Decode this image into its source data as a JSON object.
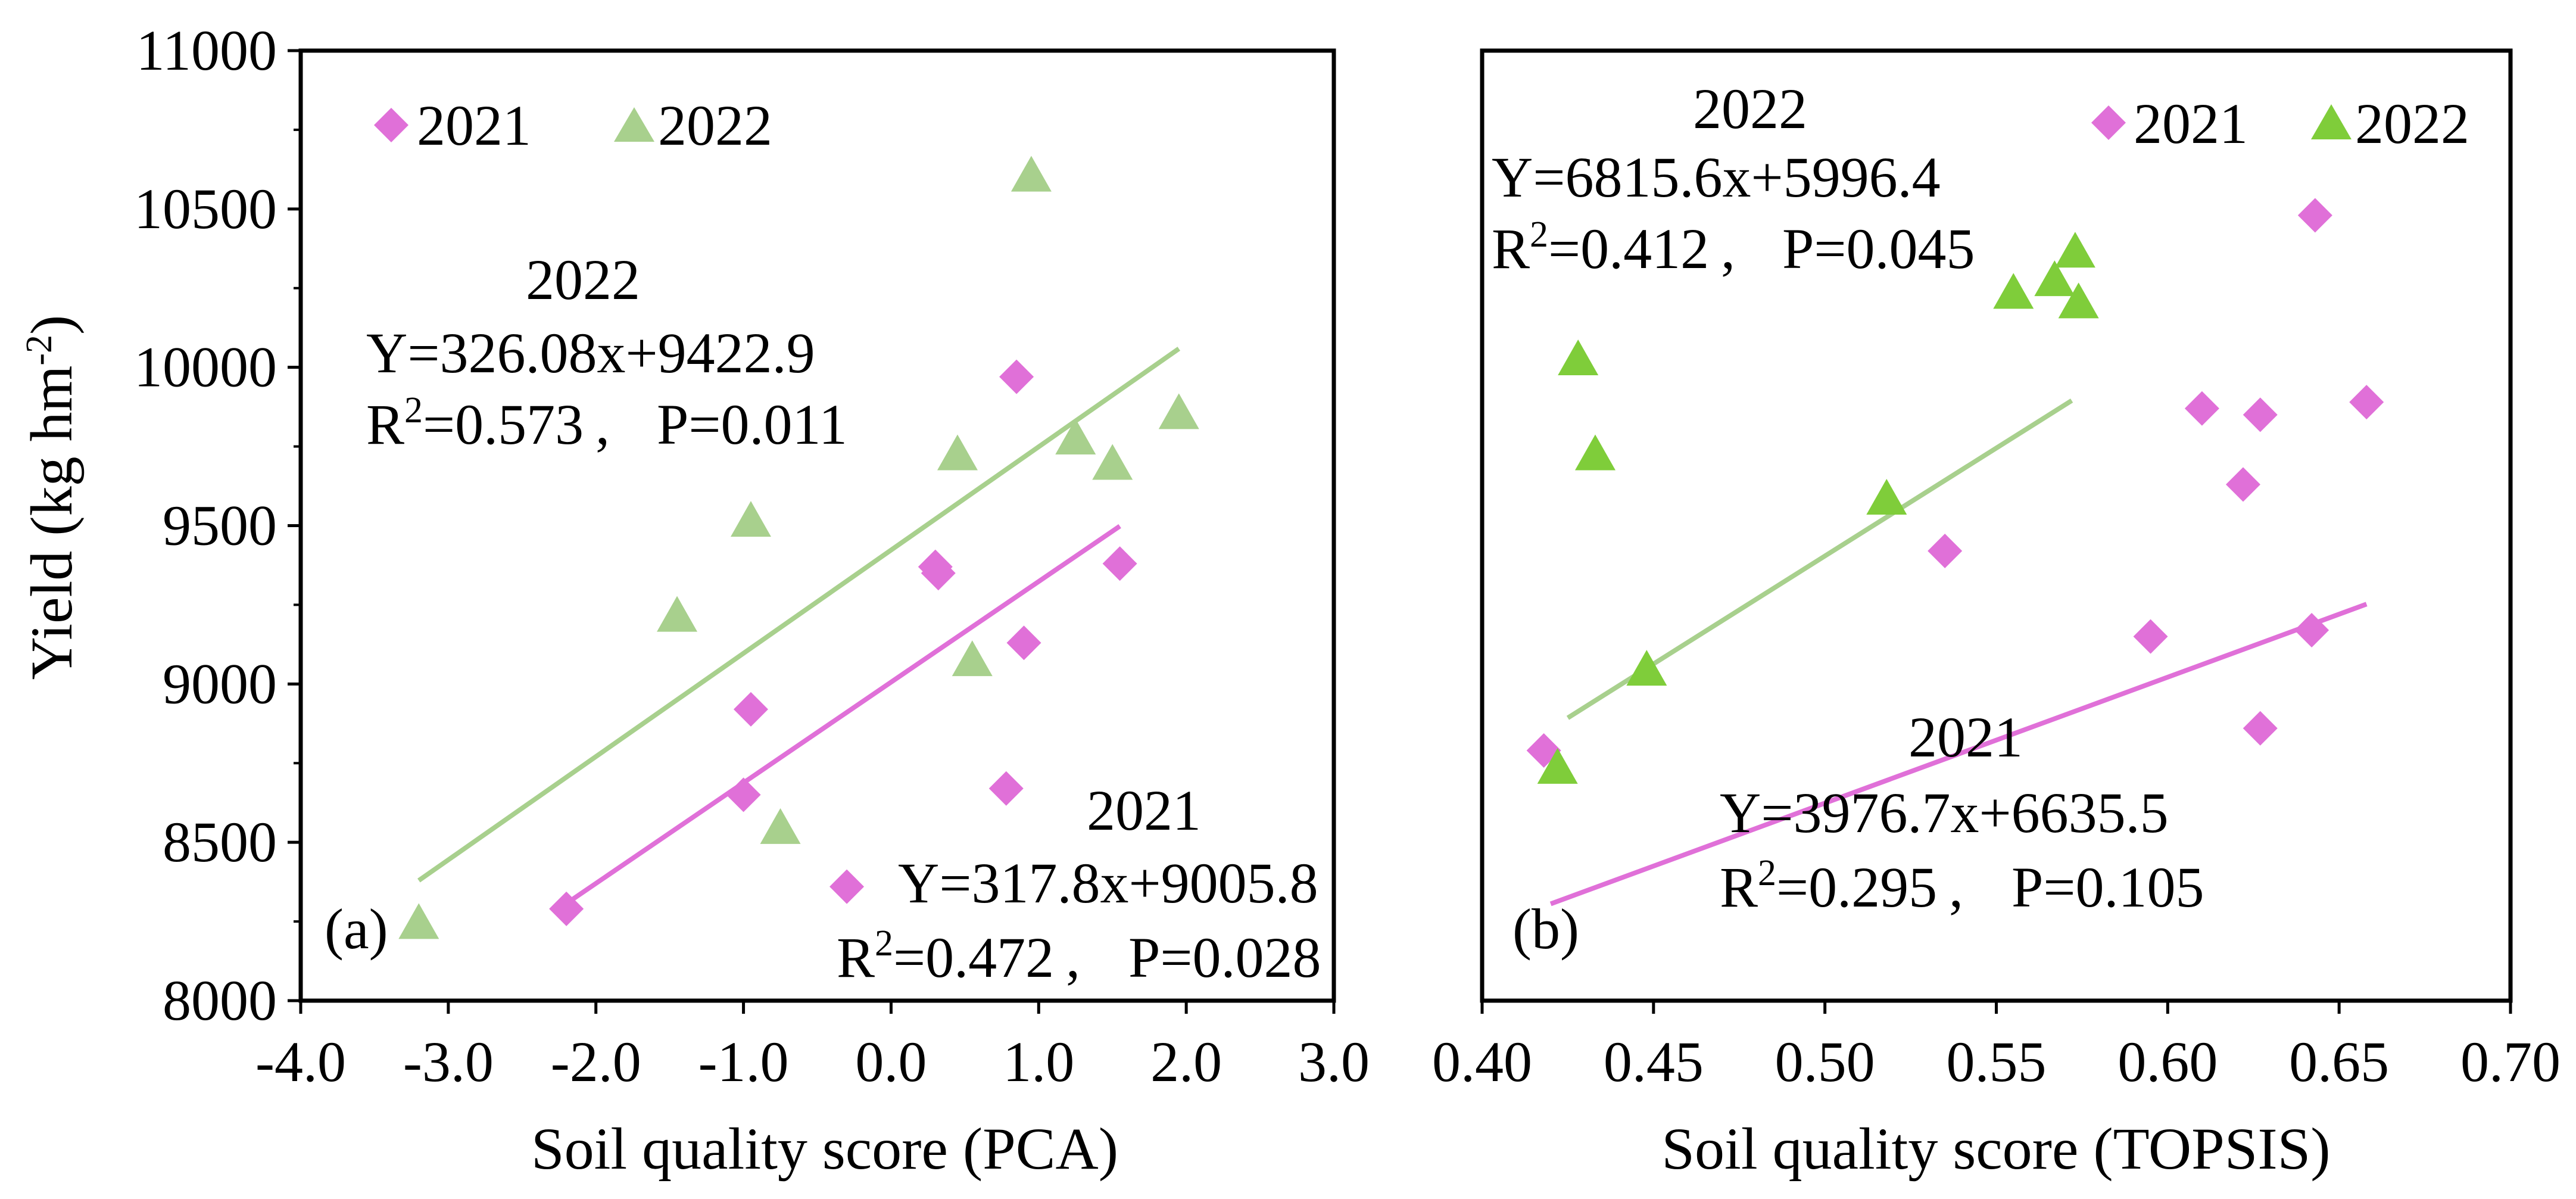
{
  "chart_data": [
    {
      "panel": "a",
      "type": "scatter",
      "panel_label": "(a)",
      "xlabel": "Soil quality score (PCA)",
      "ylabel": "Yield (kg hm",
      "ylabel_sup": "-2",
      "ylabel_close": ")",
      "xlim": [
        -4.0,
        3.0
      ],
      "ylim": [
        8000,
        11000
      ],
      "x_ticks": [
        -4.0,
        -3.0,
        -2.0,
        -1.0,
        0.0,
        1.0,
        2.0,
        3.0
      ],
      "x_tick_labels": [
        "-4.0",
        "-3.0",
        "-2.0",
        "-1.0",
        "0.0",
        "1.0",
        "2.0",
        "3.0"
      ],
      "y_ticks": [
        8000,
        8500,
        9000,
        9500,
        10000,
        10500,
        11000
      ],
      "y_tick_labels": [
        "8000",
        "8500",
        "9000",
        "9500",
        "10000",
        "10500",
        "11000"
      ],
      "legend": [
        {
          "label": "2021",
          "marker": "diamond",
          "color": "#e070d8"
        },
        {
          "label": "2022",
          "marker": "triangle",
          "color": "#a8d08d"
        }
      ],
      "series": [
        {
          "name": "2021",
          "marker": "diamond",
          "color": "#e070d8",
          "points": [
            [
              -2.2,
              8290
            ],
            [
              -1.0,
              8650
            ],
            [
              -0.95,
              8920
            ],
            [
              0.3,
              9370
            ],
            [
              0.32,
              9350
            ],
            [
              0.85,
              9970
            ],
            [
              0.9,
              9130
            ],
            [
              0.78,
              8670
            ],
            [
              1.55,
              9380
            ],
            [
              -0.3,
              8360
            ]
          ],
          "fit": {
            "slope": 317.8,
            "intercept": 9005.8,
            "x_range": [
              -2.2,
              1.55
            ],
            "color": "#e070d8"
          }
        },
        {
          "name": "2022",
          "marker": "triangle",
          "color": "#a8d08d",
          "points": [
            [
              -3.2,
              8240
            ],
            [
              -1.45,
              9210
            ],
            [
              -0.95,
              9510
            ],
            [
              -0.75,
              8540
            ],
            [
              0.45,
              9720
            ],
            [
              0.55,
              9070
            ],
            [
              0.95,
              10600
            ],
            [
              1.25,
              9770
            ],
            [
              1.5,
              9690
            ],
            [
              1.95,
              9850
            ]
          ],
          "fit": {
            "slope": 326.08,
            "intercept": 9422.9,
            "x_range": [
              -3.2,
              1.95
            ],
            "color": "#a8d08d"
          }
        }
      ],
      "annotations": {
        "fit_2022": {
          "year": "2022",
          "equation": "Y=326.08x+9422.9",
          "r2_value": "=0.573",
          "p_text": "P=0.011"
        },
        "fit_2021": {
          "year": "2021",
          "equation": "Y=317.8x+9005.8",
          "r2_value": "=0.472",
          "p_text": "P=0.028"
        }
      }
    },
    {
      "panel": "b",
      "type": "scatter",
      "panel_label": "(b)",
      "xlabel": "Soil quality score (TOPSIS)",
      "xlim": [
        0.4,
        0.7
      ],
      "ylim": [
        8000,
        11000
      ],
      "x_ticks": [
        0.4,
        0.45,
        0.5,
        0.55,
        0.6,
        0.65,
        0.7
      ],
      "x_tick_labels": [
        "0.40",
        "0.45",
        "0.50",
        "0.55",
        "0.60",
        "0.65",
        "0.70"
      ],
      "y_ticks": [
        8000,
        8500,
        9000,
        9500,
        10000,
        10500,
        11000
      ],
      "legend": [
        {
          "label": "2021",
          "marker": "diamond",
          "color": "#e070d8"
        },
        {
          "label": "2022",
          "marker": "triangle",
          "color": "#7fcd3a"
        }
      ],
      "series": [
        {
          "name": "2021",
          "marker": "diamond",
          "color": "#e070d8",
          "points": [
            [
              0.418,
              8790
            ],
            [
              0.535,
              9420
            ],
            [
              0.595,
              9150
            ],
            [
              0.61,
              9870
            ],
            [
              0.622,
              9630
            ],
            [
              0.627,
              9850
            ],
            [
              0.627,
              8860
            ],
            [
              0.642,
              9170
            ],
            [
              0.643,
              10480
            ],
            [
              0.658,
              9890
            ]
          ],
          "fit": {
            "slope": 3976.7,
            "intercept": 6635.5,
            "x_range": [
              0.42,
              0.658
            ],
            "color": "#e070d8"
          }
        },
        {
          "name": "2022",
          "marker": "triangle",
          "color": "#7fcd3a",
          "points": [
            [
              0.422,
              8730
            ],
            [
              0.428,
              10020
            ],
            [
              0.433,
              9720
            ],
            [
              0.448,
              9040
            ],
            [
              0.518,
              9580
            ],
            [
              0.555,
              10230
            ],
            [
              0.567,
              10270
            ],
            [
              0.573,
              10360
            ],
            [
              0.574,
              10200
            ]
          ],
          "fit": {
            "slope": 6815.6,
            "intercept": 5996.4,
            "x_range": [
              0.425,
              0.572
            ],
            "color": "#a8d08d"
          }
        }
      ],
      "annotations": {
        "fit_2022": {
          "year": "2022",
          "equation": "Y=6815.6x+5996.4",
          "r2_value": "=0.412",
          "p_text": "P=0.045"
        },
        "fit_2021": {
          "year": "2021",
          "equation": "Y=3976.7x+6635.5",
          "r2_value": "=0.295",
          "p_text": "P=0.105"
        }
      }
    }
  ]
}
